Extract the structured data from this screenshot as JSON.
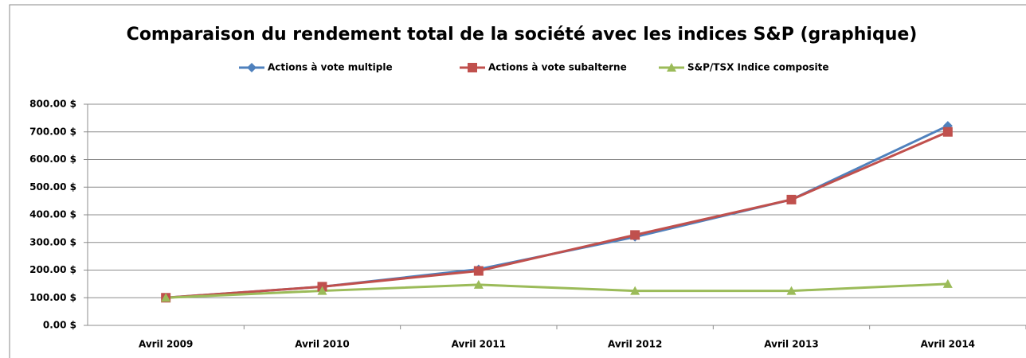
{
  "chart_data": {
    "type": "line",
    "title": "Comparaison du rendement total de la société avec les indices S&P (graphique)",
    "categories": [
      "Avril 2009",
      "Avril 2010",
      "Avril 2011",
      "Avril 2012",
      "Avril 2013",
      "Avril 2014"
    ],
    "series": [
      {
        "name": "Actions à vote multiple",
        "color": "#4f81bd",
        "marker": "diamond",
        "values": [
          100,
          140,
          203,
          320,
          455,
          722
        ]
      },
      {
        "name": "Actions à vote subalterne",
        "color": "#c0504d",
        "marker": "square",
        "values": [
          100,
          140,
          197,
          327,
          455,
          700
        ]
      },
      {
        "name": "S&P/TSX Indice composite",
        "color": "#9bbb59",
        "marker": "triangle",
        "values": [
          100,
          125,
          147,
          125,
          125,
          150
        ]
      }
    ],
    "ylim": [
      0,
      800
    ],
    "yticks": [
      {
        "value": 0,
        "label": "0.00 $"
      },
      {
        "value": 100,
        "label": "100.00 $"
      },
      {
        "value": 200,
        "label": "200.00 $"
      },
      {
        "value": 300,
        "label": "300.00 $"
      },
      {
        "value": 400,
        "label": "400.00 $"
      },
      {
        "value": 500,
        "label": "500.00 $"
      },
      {
        "value": 600,
        "label": "600.00 $"
      },
      {
        "value": 700,
        "label": "700.00 $"
      },
      {
        "value": 800,
        "label": "800.00 $"
      }
    ],
    "grid": true,
    "legend": "top"
  }
}
